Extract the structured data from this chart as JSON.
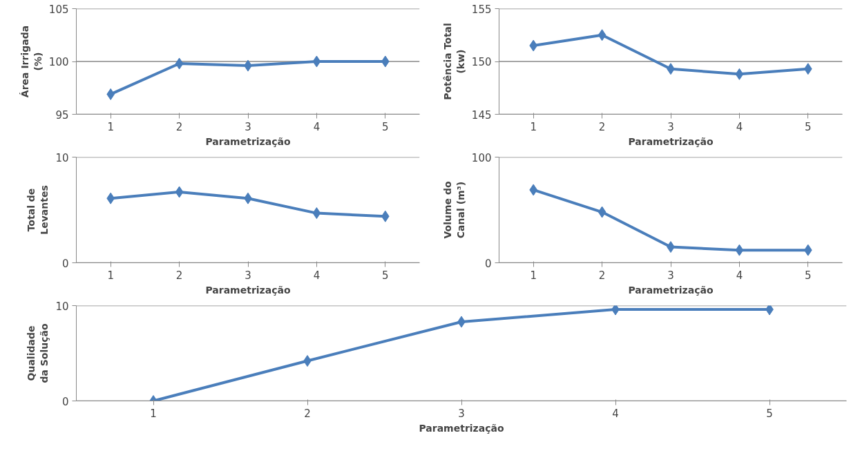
{
  "chart_data": [
    {
      "type": "line",
      "categories": [
        "1",
        "2",
        "3",
        "4",
        "5"
      ],
      "xlabel": "Parametrização",
      "ylabel": "Área Irrigada\n(%)",
      "ylim": [
        95,
        105
      ],
      "yticks": [
        95,
        100,
        105
      ],
      "grid": "y",
      "marker": "diamond",
      "line_style": "solid",
      "series": [
        {
          "color": "#4a7ebb",
          "values": [
            96.9,
            99.8,
            99.6,
            100,
            100
          ]
        }
      ]
    },
    {
      "type": "line",
      "categories": [
        "1",
        "2",
        "3",
        "4",
        "5"
      ],
      "xlabel": "Parametrização",
      "ylabel": "Potência Total\n(kw)",
      "ylim": [
        145,
        155
      ],
      "yticks": [
        145,
        150,
        155
      ],
      "grid": "y",
      "marker": "diamond",
      "line_style": "solid",
      "series": [
        {
          "color": "#4a7ebb",
          "values": [
            151.5,
            152.5,
            149.3,
            148.8,
            149.3
          ]
        }
      ]
    },
    {
      "type": "line",
      "categories": [
        "1",
        "2",
        "3",
        "4",
        "5"
      ],
      "xlabel": "Parametrização",
      "ylabel": "Total de\nLevantes",
      "ylim": [
        0,
        10
      ],
      "yticks": [
        0,
        10
      ],
      "grid": "y",
      "marker": "diamond",
      "line_style": "solid",
      "series": [
        {
          "color": "#4a7ebb",
          "values": [
            6.1,
            6.7,
            6.1,
            4.7,
            4.4
          ]
        }
      ]
    },
    {
      "type": "line",
      "categories": [
        "1",
        "2",
        "3",
        "4",
        "5"
      ],
      "xlabel": "Parametrização",
      "ylabel": "Volume do\nCanal (m³)",
      "ylim": [
        0,
        100
      ],
      "yticks": [
        0,
        100
      ],
      "grid": "y",
      "marker": "diamond",
      "line_style": "solid",
      "series": [
        {
          "color": "#4a7ebb",
          "values": [
            69,
            48,
            15,
            12,
            12
          ]
        }
      ]
    },
    {
      "type": "line",
      "categories": [
        "1",
        "2",
        "3",
        "4",
        "5"
      ],
      "xlabel": "Parametrização",
      "ylabel": "Qualidade\nda Solução",
      "ylim": [
        0,
        10
      ],
      "yticks": [
        0,
        10
      ],
      "grid": "y",
      "marker": "diamond",
      "line_style": "solid",
      "series": [
        {
          "color": "#4a7ebb",
          "values": [
            0,
            4.2,
            8.3,
            9.6,
            9.6
          ]
        }
      ]
    }
  ]
}
